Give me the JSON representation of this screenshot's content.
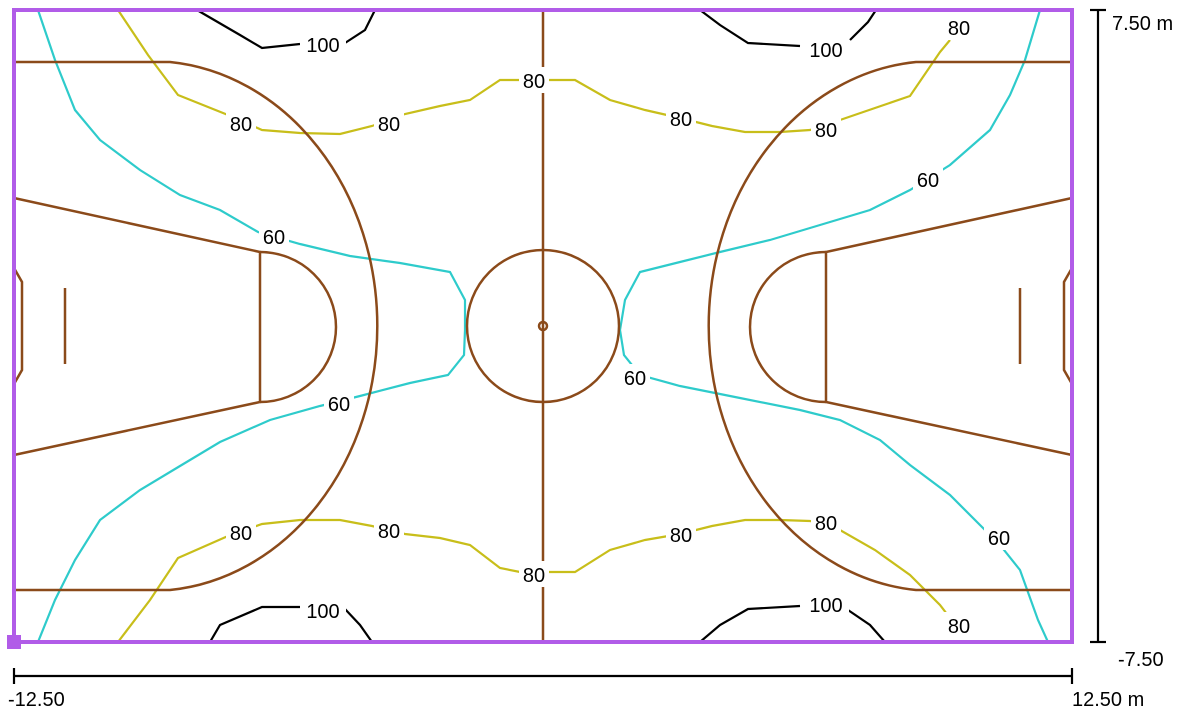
{
  "colors": {
    "court_lines": "#8B4A1A",
    "boundary": "#B15CE8",
    "contour_100": "#000000",
    "contour_80": "#C8BE1A",
    "contour_60": "#2ECBCB",
    "dimension": "#000000"
  },
  "scale": {
    "x_min_label": "-12.50",
    "x_max_label": "12.50 m",
    "y_max_label": "7.50 m",
    "y_min_label": "-7.50"
  },
  "contour_levels": [
    {
      "level": 100,
      "label": "100",
      "color_key": "contour_100"
    },
    {
      "level": 80,
      "label": "80",
      "color_key": "contour_80"
    },
    {
      "level": 60,
      "label": "60",
      "color_key": "contour_60"
    }
  ]
}
